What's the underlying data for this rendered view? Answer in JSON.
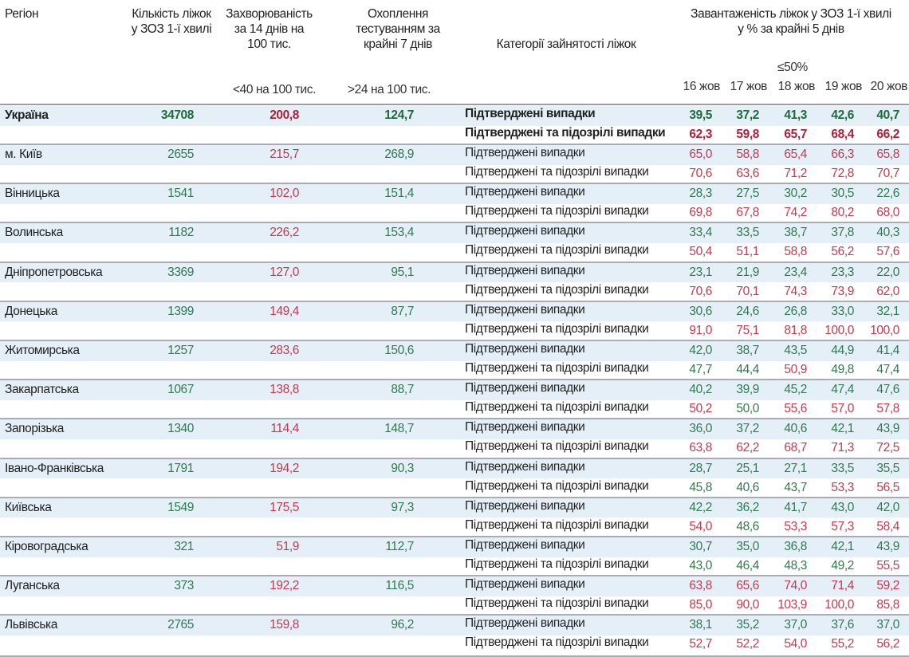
{
  "header": {
    "region": "Регіон",
    "beds": "Кількість ліжок у ЗОЗ 1-ї хвилі",
    "incidence": "Захворюваність за 14 днів на 100 тис.",
    "testing": "Охоплення тестуванням за крайні 7 днів",
    "category": "Категорії зайнятості ліжок",
    "load": "Завантаженість ліжок у ЗОЗ 1-ї хвилі у % за крайні 5 днів",
    "incidence_threshold": "<40 на 100 тис.",
    "testing_threshold": ">24 на 100 тис.",
    "load_threshold": "≤50%",
    "dates": [
      "16 жов",
      "17 жов",
      "18 жов",
      "19 жов",
      "20 жов"
    ]
  },
  "categories": {
    "confirmed": "Підтверджені випадки",
    "suspected": "Підтверджені та підозрілі випадки"
  },
  "colors": {
    "green": "#2f7a4e",
    "red": "#c23a4e",
    "green_bold": "#1f6a3c",
    "red_bold": "#b01f38",
    "row_highlight": "#e4eff8"
  },
  "rows": [
    {
      "region": "Україна",
      "beds": "34708",
      "incidence": "200,8",
      "testing": "124,7",
      "confirmed": [
        "39,5",
        "37,2",
        "41,3",
        "42,6",
        "40,7"
      ],
      "suspected": [
        "62,3",
        "59,8",
        "65,7",
        "68,4",
        "66,2"
      ]
    },
    {
      "region": "м. Київ",
      "beds": "2655",
      "incidence": "215,7",
      "testing": "268,9",
      "confirmed": [
        "65,0",
        "58,8",
        "65,4",
        "66,3",
        "65,8"
      ],
      "suspected": [
        "70,6",
        "63,6",
        "71,2",
        "72,8",
        "70,7"
      ]
    },
    {
      "region": "Вінницька",
      "beds": "1541",
      "incidence": "102,0",
      "testing": "151,4",
      "confirmed": [
        "28,3",
        "27,5",
        "30,2",
        "30,5",
        "22,6"
      ],
      "suspected": [
        "69,8",
        "67,8",
        "74,2",
        "80,2",
        "68,0"
      ]
    },
    {
      "region": "Волинська",
      "beds": "1182",
      "incidence": "226,2",
      "testing": "153,4",
      "confirmed": [
        "33,4",
        "33,5",
        "38,7",
        "37,8",
        "40,3"
      ],
      "suspected": [
        "50,4",
        "51,1",
        "58,8",
        "56,2",
        "57,6"
      ]
    },
    {
      "region": "Дніпропетровська",
      "beds": "3369",
      "incidence": "127,0",
      "testing": "95,1",
      "confirmed": [
        "23,1",
        "21,9",
        "23,4",
        "23,3",
        "22,0"
      ],
      "suspected": [
        "70,6",
        "70,1",
        "74,3",
        "73,9",
        "62,0"
      ]
    },
    {
      "region": "Донецька",
      "beds": "1399",
      "incidence": "149,4",
      "testing": "87,7",
      "confirmed": [
        "30,6",
        "24,6",
        "26,8",
        "33,0",
        "32,1"
      ],
      "suspected": [
        "91,0",
        "75,1",
        "81,8",
        "100,0",
        "100,0"
      ]
    },
    {
      "region": "Житомирська",
      "beds": "1257",
      "incidence": "283,6",
      "testing": "150,6",
      "confirmed": [
        "42,0",
        "38,7",
        "43,5",
        "44,9",
        "41,4"
      ],
      "suspected": [
        "47,7",
        "44,4",
        "50,9",
        "49,8",
        "47,4"
      ]
    },
    {
      "region": "Закарпатська",
      "beds": "1067",
      "incidence": "138,8",
      "testing": "88,7",
      "confirmed": [
        "40,2",
        "39,9",
        "45,2",
        "47,4",
        "47,6"
      ],
      "suspected": [
        "50,2",
        "50,0",
        "55,6",
        "57,0",
        "57,8"
      ]
    },
    {
      "region": "Запорізька",
      "beds": "1340",
      "incidence": "114,4",
      "testing": "148,7",
      "confirmed": [
        "36,0",
        "37,2",
        "40,6",
        "42,1",
        "43,9"
      ],
      "suspected": [
        "63,8",
        "62,2",
        "68,7",
        "71,3",
        "72,5"
      ]
    },
    {
      "region": "Івано-Франківська",
      "beds": "1791",
      "incidence": "194,2",
      "testing": "90,3",
      "confirmed": [
        "28,7",
        "25,1",
        "27,1",
        "33,5",
        "35,5"
      ],
      "suspected": [
        "45,8",
        "40,6",
        "43,7",
        "53,3",
        "56,5"
      ]
    },
    {
      "region": "Київська",
      "beds": "1549",
      "incidence": "175,5",
      "testing": "97,3",
      "confirmed": [
        "42,2",
        "36,2",
        "41,7",
        "43,0",
        "42,0"
      ],
      "suspected": [
        "54,0",
        "48,6",
        "53,3",
        "57,3",
        "58,4"
      ]
    },
    {
      "region": "Кіровоградська",
      "beds": "321",
      "incidence": "51,9",
      "testing": "112,7",
      "confirmed": [
        "30,7",
        "35,0",
        "36,8",
        "42,1",
        "43,9"
      ],
      "suspected": [
        "43,0",
        "46,4",
        "48,3",
        "49,2",
        "55,5"
      ]
    },
    {
      "region": "Луганська",
      "beds": "373",
      "incidence": "192,2",
      "testing": "116,5",
      "confirmed": [
        "63,8",
        "65,6",
        "74,0",
        "71,4",
        "59,2"
      ],
      "suspected": [
        "85,0",
        "90,0",
        "103,9",
        "100,0",
        "85,8"
      ]
    },
    {
      "region": "Львівська",
      "beds": "2765",
      "incidence": "159,8",
      "testing": "96,2",
      "confirmed": [
        "38,1",
        "35,2",
        "37,0",
        "37,6",
        "37,0"
      ],
      "suspected": [
        "52,7",
        "52,2",
        "54,0",
        "55,2",
        "56,2"
      ]
    }
  ]
}
